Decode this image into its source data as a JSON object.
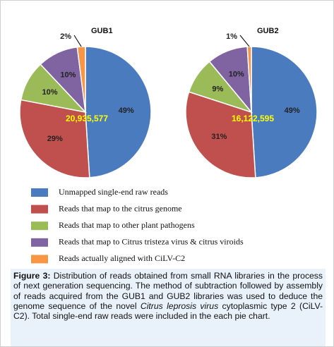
{
  "chart_data": {
    "type": "pie",
    "categories": [
      "Unmapped single-end raw reads",
      "Reads that map to the citrus genome",
      "Reads that map to other plant pathogens",
      "Reads that map to Citrus tristeza virus & citrus viroids",
      "Reads actually aligned with CiLV-C2"
    ],
    "colors": [
      "#4a7bbf",
      "#c0504d",
      "#9bbb59",
      "#8064a2",
      "#f79646"
    ],
    "pies": [
      {
        "title": "GUB1",
        "total": {
          "value": 20935577,
          "label": "20,935,577"
        },
        "values": [
          49,
          29,
          10,
          10,
          2
        ],
        "value_labels": [
          "49%",
          "29%",
          "10%",
          "10%",
          "2%"
        ]
      },
      {
        "title": "GUB2",
        "total": {
          "value": 16122595,
          "label": "16,122,595"
        },
        "values": [
          49,
          31,
          9,
          10,
          1
        ],
        "value_labels": [
          "49%",
          "31%",
          "9%",
          "10%",
          "1%"
        ]
      }
    ]
  },
  "caption": {
    "label": "Figure 3:",
    "parts": [
      " Distribution of reads obtained from small RNA libraries in the process of next generation sequencing. The method of subtraction followed by assembly of reads acquired from the GUB1 and GUB2 libraries was used to deduce the genome sequence of the novel ",
      "Citrus leprosis virus",
      " cytoplasmic type 2 (CiLV-C2).  Total single-end raw reads were included in the each pie chart."
    ]
  }
}
